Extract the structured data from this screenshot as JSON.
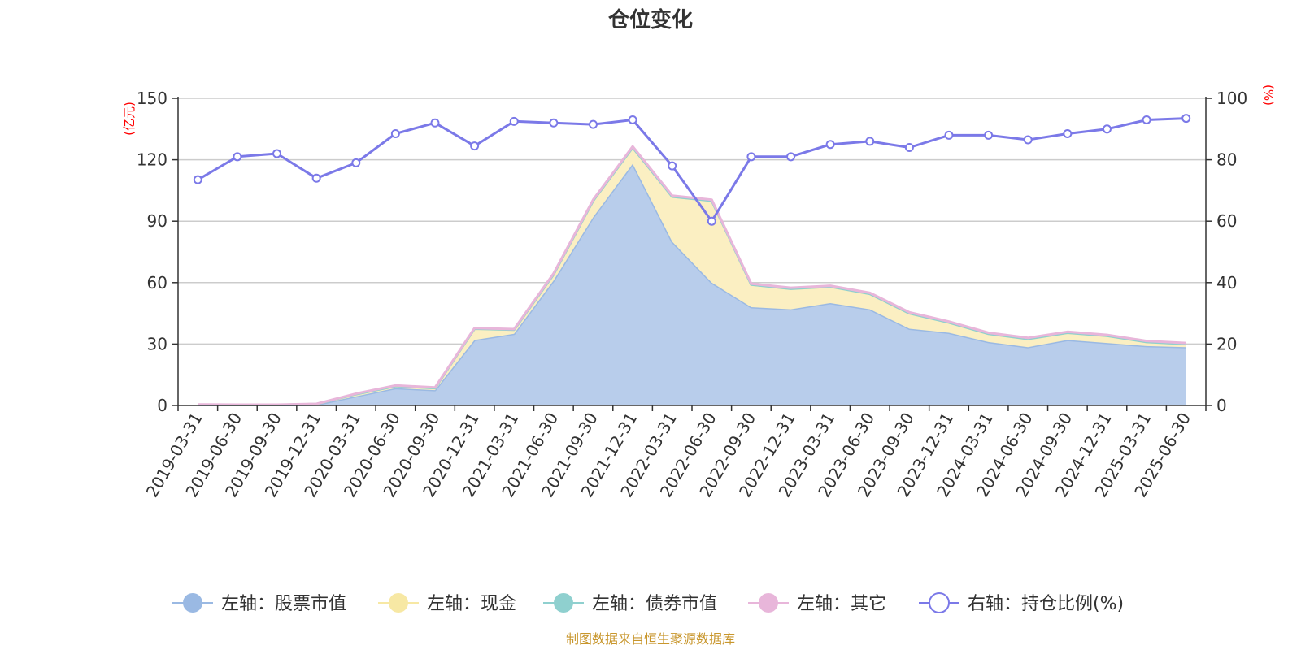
{
  "chart_data": {
    "type": "area",
    "title": "仓位变化",
    "left_axis_unit": "(亿元)",
    "right_axis_unit": "(%)",
    "ylim_left": [
      0,
      150
    ],
    "yticks_left": [
      0,
      30,
      60,
      90,
      120,
      150
    ],
    "ylim_right": [
      0,
      100
    ],
    "yticks_right": [
      0,
      20,
      40,
      60,
      80,
      100
    ],
    "grid": true,
    "legend_position": "bottom",
    "x": [
      "2019-03-31",
      "2019-06-30",
      "2019-09-30",
      "2019-12-31",
      "2020-03-31",
      "2020-06-30",
      "2020-09-30",
      "2020-12-31",
      "2021-03-31",
      "2021-06-30",
      "2021-09-30",
      "2021-12-31",
      "2022-03-31",
      "2022-06-30",
      "2022-09-30",
      "2022-12-31",
      "2023-03-31",
      "2023-06-30",
      "2023-09-30",
      "2023-12-31",
      "2024-03-31",
      "2024-06-30",
      "2024-09-30",
      "2024-12-31",
      "2025-03-31",
      "2025-06-30"
    ],
    "series": [
      {
        "name": "左轴：股票市值",
        "axis": "left",
        "color": "#9ab9e3",
        "fill": "#b8cdeb",
        "values": [
          0.3,
          0.2,
          0.2,
          0.4,
          4.5,
          8.5,
          7.5,
          32,
          35,
          61,
          92,
          118,
          80,
          60,
          48,
          47,
          50,
          47,
          37.5,
          35.5,
          31,
          28.5,
          32,
          30.5,
          29,
          28.5
        ]
      },
      {
        "name": "左轴：现金",
        "axis": "left",
        "color": "#f7e8a4",
        "fill": "#fbefc2",
        "values": [
          0.1,
          0.1,
          0.1,
          0.3,
          1.0,
          1.0,
          1.0,
          5.5,
          2.0,
          3.0,
          8.0,
          8.0,
          22,
          40,
          11,
          10,
          8,
          7.5,
          7.5,
          5.0,
          4.0,
          4.0,
          3.5,
          3.5,
          2.0,
          1.5
        ]
      },
      {
        "name": "左轴：债券市值",
        "axis": "left",
        "color": "#8fd0cf",
        "fill": "#a6d8d6",
        "values": [
          0,
          0,
          0,
          0,
          0,
          0,
          0,
          0,
          0,
          0,
          0,
          0,
          0,
          0,
          0,
          0,
          0,
          0,
          0,
          0,
          0,
          0,
          0,
          0,
          0,
          0
        ]
      },
      {
        "name": "左轴：其它",
        "axis": "left",
        "color": "#e8b6da",
        "fill": "#f0cbe6",
        "values": [
          0.1,
          0.1,
          0.1,
          0.1,
          0.3,
          0.3,
          0.3,
          0.3,
          0.3,
          0.5,
          0.5,
          0.5,
          0.5,
          0.5,
          0.5,
          0.5,
          0.5,
          0.5,
          0.5,
          0.5,
          0.5,
          0.5,
          0.5,
          0.5,
          0.5,
          0.5
        ]
      },
      {
        "name": "右轴：持仓比例(%)",
        "axis": "right",
        "color": "#7b79e8",
        "values": [
          73.5,
          81,
          82,
          74,
          79,
          88.5,
          92,
          84.5,
          92.5,
          92,
          91.5,
          93,
          78,
          60,
          81,
          81,
          85,
          86,
          84,
          88,
          88,
          86.5,
          88.5,
          90,
          93,
          93.5
        ]
      }
    ]
  },
  "source_text": "制图数据来自恒生聚源数据库"
}
